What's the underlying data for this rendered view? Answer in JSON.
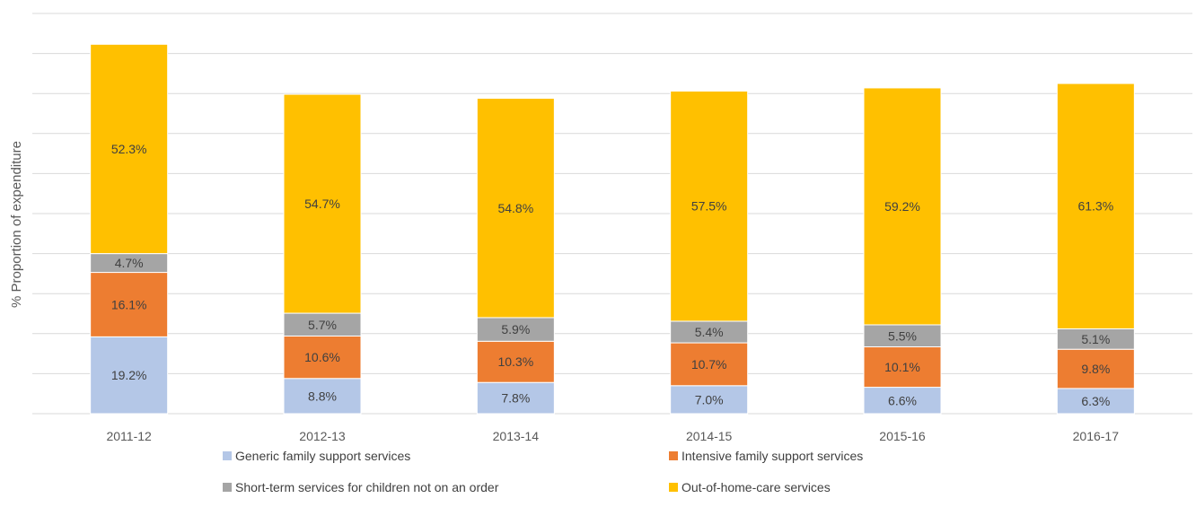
{
  "chart_data": {
    "type": "bar",
    "stacked": true,
    "title": "",
    "xlabel": "",
    "ylabel": "% Proportion of expenditure",
    "categories": [
      "2011-12",
      "2012-13",
      "2013-14",
      "2014-15",
      "2015-16",
      "2016-17"
    ],
    "series": [
      {
        "name": "Generic family support services",
        "color": "#b4c7e7",
        "values": [
          19.2,
          8.8,
          7.8,
          7.0,
          6.6,
          6.3
        ],
        "labels": [
          "19.2%",
          "8.8%",
          "7.8%",
          "7.0%",
          "6.6%",
          "6.3%"
        ]
      },
      {
        "name": "Intensive family support services",
        "color": "#ed7d31",
        "values": [
          16.1,
          10.6,
          10.3,
          10.7,
          10.1,
          9.8
        ],
        "labels": [
          "16.1%",
          "10.6%",
          "10.3%",
          "10.7%",
          "10.1%",
          "9.8%"
        ]
      },
      {
        "name": "Short-term services for children not on an order",
        "color": "#a5a5a5",
        "values": [
          4.7,
          5.7,
          5.9,
          5.4,
          5.5,
          5.1
        ],
        "labels": [
          "4.7%",
          "5.7%",
          "5.9%",
          "5.4%",
          "5.5%",
          "5.1%"
        ]
      },
      {
        "name": "Out-of-home-care services",
        "color": "#ffc000",
        "values": [
          52.3,
          54.7,
          54.8,
          57.5,
          59.2,
          61.3
        ],
        "labels": [
          "52.3%",
          "54.7%",
          "54.8%",
          "57.5%",
          "59.2%",
          "61.3%"
        ]
      }
    ],
    "ylim": [
      0,
      100
    ],
    "grid": true,
    "legend_position": "bottom"
  }
}
